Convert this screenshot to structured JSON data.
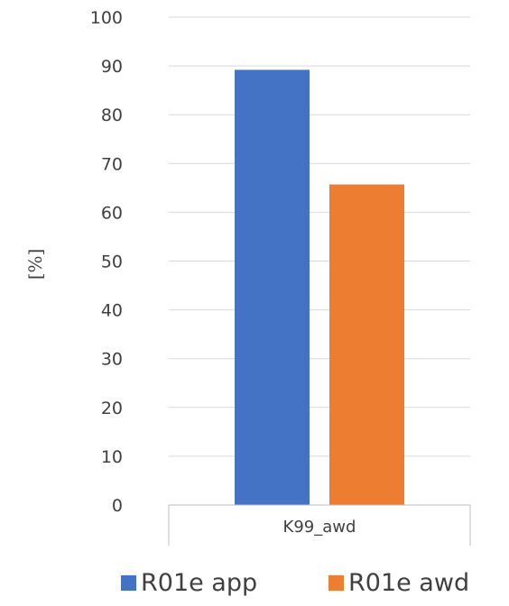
{
  "chart_data": {
    "type": "bar",
    "title": "",
    "xlabel": "",
    "ylabel": "[%]",
    "categories": [
      "K99_awd"
    ],
    "series": [
      {
        "name": "R01e app",
        "values": [
          89.2
        ],
        "color": "#4472c4"
      },
      {
        "name": "R01e awd",
        "values": [
          65.7
        ],
        "color": "#ed7d31"
      }
    ],
    "ylim": [
      0,
      100
    ],
    "yticks": [
      0,
      10,
      20,
      30,
      40,
      50,
      60,
      70,
      80,
      90,
      100
    ],
    "grid": true,
    "legend_position": "bottom"
  },
  "colors": {
    "gridline": "#d9d9d9",
    "axis": "#bfbfbf",
    "text": "#404040"
  }
}
